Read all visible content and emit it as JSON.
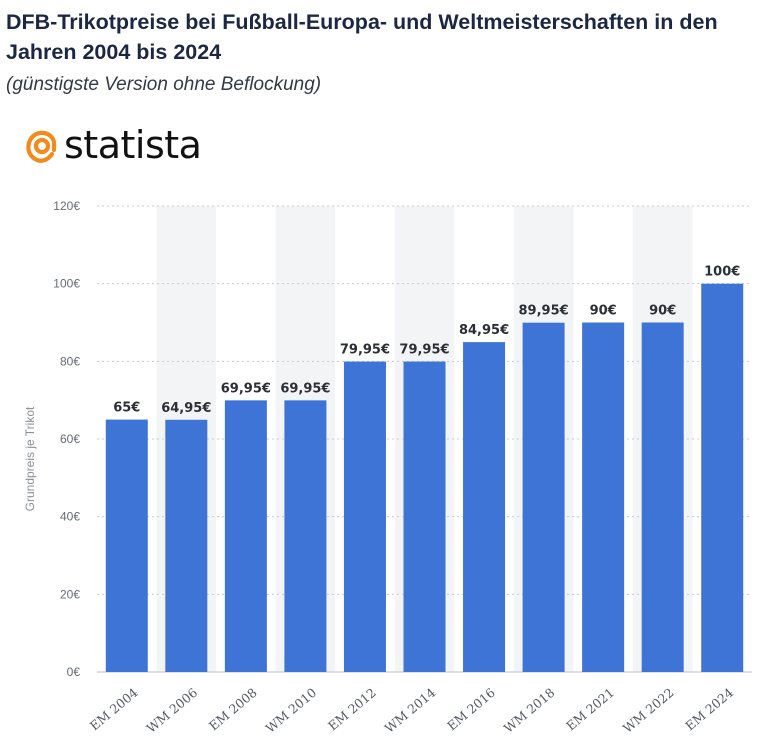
{
  "header": {
    "title": "DFB-Trikotpreise bei Fußball-Europa- und Weltmeisterschaften in den Jahren 2004 bis 2024",
    "subtitle": "(günstigste Version ohne Beflockung)",
    "logo_text": "statista"
  },
  "colors": {
    "bar": "#3e74d6",
    "band": "#f3f4f6",
    "grid": "#c8ccd2"
  },
  "chart_data": {
    "type": "bar",
    "title": "DFB-Trikotpreise bei Fußball-Europa- und Weltmeisterschaften in den Jahren 2004 bis 2024",
    "subtitle": "(günstigste Version ohne Beflockung)",
    "xlabel": "",
    "ylabel": "Grundpreis je Trikot",
    "ylim": [
      0,
      120
    ],
    "yticks": [
      0,
      20,
      40,
      60,
      80,
      100,
      120
    ],
    "ytick_labels": [
      "0€",
      "20€",
      "40€",
      "60€",
      "80€",
      "100€",
      "120€"
    ],
    "grid": true,
    "categories": [
      "EM 2004",
      "WM 2006",
      "EM 2008",
      "WM 2010",
      "EM 2012",
      "WM 2014",
      "EM 2016",
      "WM 2018",
      "EM 2021",
      "WM 2022",
      "EM 2024"
    ],
    "values": [
      65,
      64.95,
      69.95,
      69.95,
      79.95,
      79.95,
      84.95,
      89.95,
      90,
      90,
      100
    ],
    "value_labels": [
      "65€",
      "64,95€",
      "69,95€",
      "69,95€",
      "79,95€",
      "79,95€",
      "84,95€",
      "89,95€",
      "90€",
      "90€",
      "100€"
    ]
  }
}
